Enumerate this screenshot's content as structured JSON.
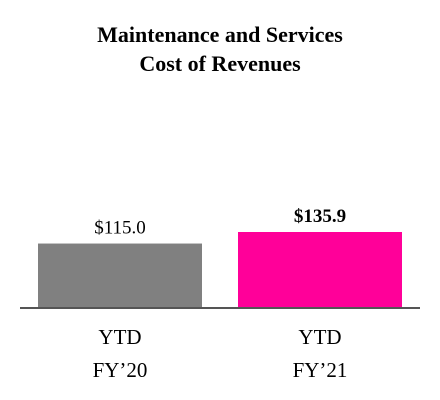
{
  "chart_data": {
    "type": "bar",
    "title_lines": [
      "Maintenance and Services",
      "Cost of Revenues"
    ],
    "categories": [
      [
        "YTD",
        "FY’20"
      ],
      [
        "YTD",
        "FY’21"
      ]
    ],
    "values": [
      115.0,
      135.9
    ],
    "data_labels": [
      "$115.0",
      "$135.9"
    ],
    "data_label_bold": [
      false,
      true
    ],
    "colors": [
      "#808080",
      "#ff0099"
    ],
    "axis_color": "#555555",
    "ylim": [
      0,
      135.9
    ],
    "grid": false,
    "legend": "none"
  }
}
